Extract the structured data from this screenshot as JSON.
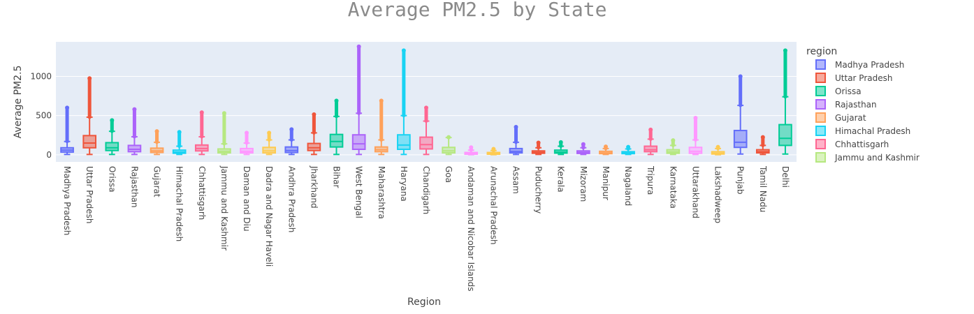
{
  "chart_data": {
    "type": "box",
    "title": "Average PM2.5 by State",
    "xlabel": "Region",
    "ylabel": "Average PM2.5",
    "ylim": [
      -90,
      1440
    ],
    "yticks": [
      0,
      500,
      1000
    ],
    "grid": true,
    "legend_title": "region",
    "legend_position": "right",
    "categories": [
      "Madhya Pradesh",
      "Uttar Pradesh",
      "Orissa",
      "Rajasthan",
      "Gujarat",
      "Himachal Pradesh",
      "Chhattisgarh",
      "Jammu and Kashmir",
      "Daman and Diu",
      "Dadra and Nagar Haveli",
      "Andhra Pradesh",
      "Jharkhand",
      "Bihar",
      "West Bengal",
      "Maharashtra",
      "Haryana",
      "Chandigarh",
      "Goa",
      "Andaman and Nicobar Islands",
      "Arunachal Pradesh",
      "Assam",
      "Puducherry",
      "Kerala",
      "Mizoram",
      "Manipur",
      "Nagaland",
      "Tripura",
      "Karnataka",
      "Uttarakhand",
      "Lakshadweep",
      "Punjab",
      "Tamil Nadu",
      "Delhi"
    ],
    "series": [
      {
        "name": "Madhya Pradesh",
        "color": "#636efa",
        "min": 5,
        "q1": 35,
        "median": 60,
        "q3": 90,
        "upper_fence": 170,
        "outlier_max": 600
      },
      {
        "name": "Uttar Pradesh",
        "color": "#ef553b",
        "min": 5,
        "q1": 90,
        "median": 150,
        "q3": 245,
        "upper_fence": 480,
        "outlier_max": 975
      },
      {
        "name": "Orissa",
        "color": "#00cc96",
        "min": 5,
        "q1": 55,
        "median": 90,
        "q3": 155,
        "upper_fence": 300,
        "outlier_max": 440
      },
      {
        "name": "Rajasthan",
        "color": "#ab63fa",
        "min": 5,
        "q1": 40,
        "median": 70,
        "q3": 120,
        "upper_fence": 230,
        "outlier_max": 580
      },
      {
        "name": "Gujarat",
        "color": "#ffa15a",
        "min": 5,
        "q1": 30,
        "median": 50,
        "q3": 85,
        "upper_fence": 160,
        "outlier_max": 300
      },
      {
        "name": "Himachal Pradesh",
        "color": "#19d3f3",
        "min": 5,
        "q1": 20,
        "median": 35,
        "q3": 60,
        "upper_fence": 110,
        "outlier_max": 290
      },
      {
        "name": "Chhattisgarh",
        "color": "#ff6692",
        "min": 5,
        "q1": 50,
        "median": 80,
        "q3": 125,
        "upper_fence": 230,
        "outlier_max": 540
      },
      {
        "name": "Jammu and Kashmir",
        "color": "#b6e880",
        "min": 5,
        "q1": 25,
        "median": 45,
        "q3": 75,
        "upper_fence": 140,
        "outlier_max": 530
      },
      {
        "name": "Daman and Diu",
        "color": "#ff97ff",
        "min": 5,
        "q1": 25,
        "median": 45,
        "q3": 80,
        "upper_fence": 150,
        "outlier_max": 280
      },
      {
        "name": "Dadra and Nagar Haveli",
        "color": "#fecb52",
        "min": 5,
        "q1": 25,
        "median": 50,
        "q3": 95,
        "upper_fence": 190,
        "outlier_max": 280
      },
      {
        "name": "Andhra Pradesh",
        "color": "#636efa",
        "min": 5,
        "q1": 30,
        "median": 55,
        "q3": 100,
        "upper_fence": 190,
        "outlier_max": 325
      },
      {
        "name": "Jharkhand",
        "color": "#ef553b",
        "min": 5,
        "q1": 55,
        "median": 90,
        "q3": 145,
        "upper_fence": 280,
        "outlier_max": 515
      },
      {
        "name": "Bihar",
        "color": "#00cc96",
        "min": 5,
        "q1": 100,
        "median": 170,
        "q3": 260,
        "upper_fence": 490,
        "outlier_max": 690
      },
      {
        "name": "West Bengal",
        "color": "#ab63fa",
        "min": 5,
        "q1": 70,
        "median": 140,
        "q3": 255,
        "upper_fence": 530,
        "outlier_max": 1380
      },
      {
        "name": "Maharashtra",
        "color": "#ffa15a",
        "min": 5,
        "q1": 40,
        "median": 65,
        "q3": 100,
        "upper_fence": 190,
        "outlier_max": 690
      },
      {
        "name": "Haryana",
        "color": "#19d3f3",
        "min": 5,
        "q1": 70,
        "median": 125,
        "q3": 255,
        "upper_fence": 500,
        "outlier_max": 1330
      },
      {
        "name": "Chandigarh",
        "color": "#ff6692",
        "min": 5,
        "q1": 75,
        "median": 130,
        "q3": 225,
        "upper_fence": 430,
        "outlier_max": 600
      },
      {
        "name": "Goa",
        "color": "#b6e880",
        "min": 5,
        "q1": 25,
        "median": 50,
        "q3": 95,
        "upper_fence": 220,
        "outlier_max": 225
      },
      {
        "name": "Andaman and Nicobar Islands",
        "color": "#ff97ff",
        "min": 2,
        "q1": 8,
        "median": 15,
        "q3": 30,
        "upper_fence": 60,
        "outlier_max": 95
      },
      {
        "name": "Arunachal Pradesh",
        "color": "#fecb52",
        "min": 2,
        "q1": 8,
        "median": 15,
        "q3": 30,
        "upper_fence": 55,
        "outlier_max": 75
      },
      {
        "name": "Assam",
        "color": "#636efa",
        "min": 5,
        "q1": 25,
        "median": 45,
        "q3": 80,
        "upper_fence": 160,
        "outlier_max": 355
      },
      {
        "name": "Puducherry",
        "color": "#ef553b",
        "min": 5,
        "q1": 20,
        "median": 32,
        "q3": 50,
        "upper_fence": 90,
        "outlier_max": 155
      },
      {
        "name": "Kerala",
        "color": "#00cc96",
        "min": 5,
        "q1": 22,
        "median": 35,
        "q3": 60,
        "upper_fence": 110,
        "outlier_max": 160
      },
      {
        "name": "Mizoram",
        "color": "#ab63fa",
        "min": 5,
        "q1": 18,
        "median": 30,
        "q3": 50,
        "upper_fence": 90,
        "outlier_max": 135
      },
      {
        "name": "Manipur",
        "color": "#ffa15a",
        "min": 5,
        "q1": 15,
        "median": 25,
        "q3": 45,
        "upper_fence": 80,
        "outlier_max": 105
      },
      {
        "name": "Nagaland",
        "color": "#19d3f3",
        "min": 5,
        "q1": 15,
        "median": 25,
        "q3": 40,
        "upper_fence": 75,
        "outlier_max": 100
      },
      {
        "name": "Tripura",
        "color": "#ff6692",
        "min": 5,
        "q1": 40,
        "median": 65,
        "q3": 110,
        "upper_fence": 200,
        "outlier_max": 320
      },
      {
        "name": "Karnataka",
        "color": "#b6e880",
        "min": 5,
        "q1": 20,
        "median": 38,
        "q3": 65,
        "upper_fence": 120,
        "outlier_max": 185
      },
      {
        "name": "Uttarakhand",
        "color": "#ff97ff",
        "min": 5,
        "q1": 20,
        "median": 45,
        "q3": 95,
        "upper_fence": 190,
        "outlier_max": 470
      },
      {
        "name": "Lakshadweep",
        "color": "#fecb52",
        "min": 2,
        "q1": 10,
        "median": 20,
        "q3": 40,
        "upper_fence": 80,
        "outlier_max": 100
      },
      {
        "name": "Punjab",
        "color": "#636efa",
        "min": 10,
        "q1": 95,
        "median": 160,
        "q3": 310,
        "upper_fence": 630,
        "outlier_max": 1000
      },
      {
        "name": "Tamil Nadu",
        "color": "#ef553b",
        "min": 5,
        "q1": 25,
        "median": 40,
        "q3": 65,
        "upper_fence": 120,
        "outlier_max": 225
      },
      {
        "name": "Delhi",
        "color": "#00cc96",
        "min": 10,
        "q1": 120,
        "median": 210,
        "q3": 385,
        "upper_fence": 740,
        "outlier_max": 1330
      }
    ]
  }
}
